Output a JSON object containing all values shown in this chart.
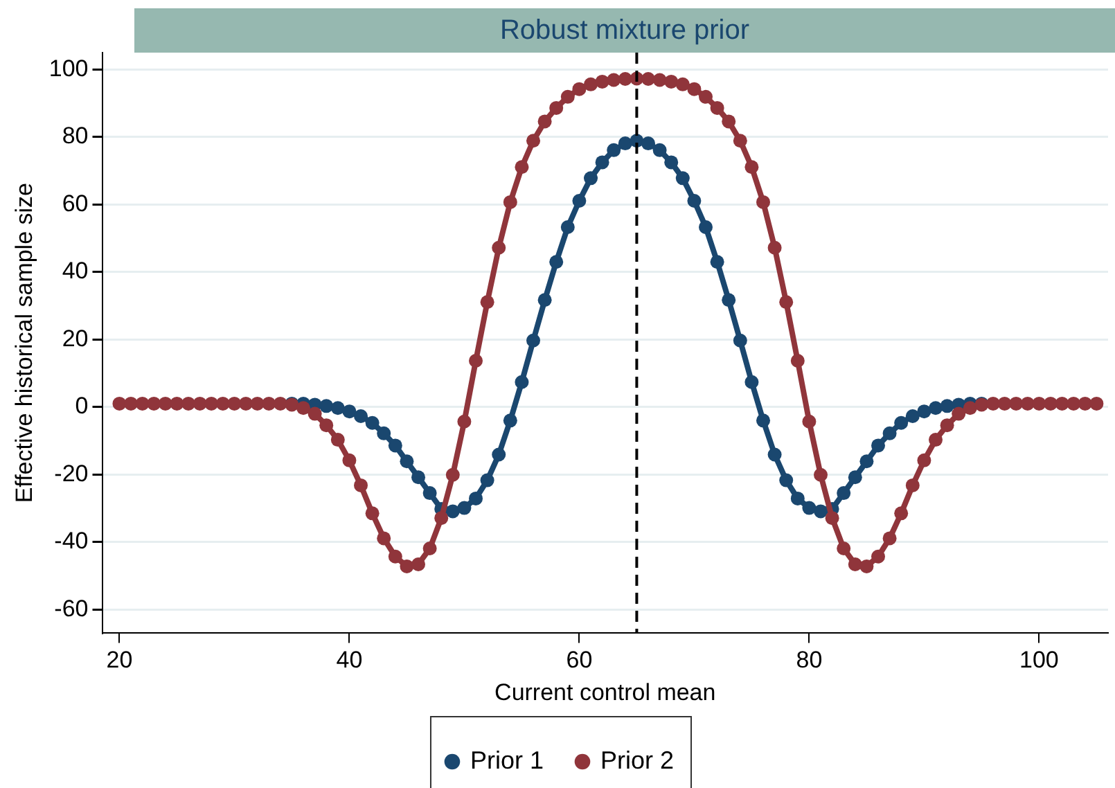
{
  "chart_data": {
    "type": "line",
    "title": "Robust mixture prior",
    "xlabel": "Current control mean",
    "ylabel": "Effective historical sample size",
    "x": [
      20,
      21,
      22,
      23,
      24,
      25,
      26,
      27,
      28,
      29,
      30,
      31,
      32,
      33,
      34,
      35,
      36,
      37,
      38,
      39,
      40,
      41,
      42,
      43,
      44,
      45,
      46,
      47,
      48,
      49,
      50,
      51,
      52,
      53,
      54,
      55,
      56,
      57,
      58,
      59,
      60,
      61,
      62,
      63,
      64,
      65,
      66,
      67,
      68,
      69,
      70,
      71,
      72,
      73,
      74,
      75,
      76,
      77,
      78,
      79,
      80,
      81,
      82,
      83,
      84,
      85,
      86,
      87,
      88,
      89,
      90,
      91,
      92,
      93,
      94,
      95,
      96,
      97,
      98,
      99,
      100,
      101,
      102,
      103,
      104,
      105
    ],
    "series": [
      {
        "name": "Prior 1",
        "color": "#1a476f",
        "values": [
          null,
          null,
          null,
          null,
          null,
          null,
          null,
          null,
          null,
          null,
          null,
          null,
          null,
          null,
          null,
          1,
          1,
          0.7,
          0.3,
          -0.3,
          -1.3,
          -2.7,
          -4.7,
          -7.8,
          -11.4,
          -16.1,
          -20.8,
          -25.5,
          -30.2,
          -30.9,
          -29.9,
          -27.1,
          -21.7,
          -14.1,
          -4,
          7.4,
          19.7,
          31.7,
          43,
          53.3,
          61.1,
          67.8,
          72.5,
          76.1,
          78.1,
          78.9,
          78.1,
          76.1,
          72.5,
          67.8,
          61.1,
          53.3,
          43,
          31.7,
          19.7,
          7.4,
          -4,
          -14.1,
          -21.7,
          -27.1,
          -29.9,
          -30.9,
          -30.2,
          -25.5,
          -20.8,
          -16.1,
          -11.4,
          -7.8,
          -4.7,
          -2.7,
          -1.3,
          -0.3,
          0.3,
          0.7,
          1,
          1,
          null,
          null,
          null,
          null,
          null,
          null,
          null,
          null,
          null,
          null
        ]
      },
      {
        "name": "Prior 2",
        "color": "#90353b",
        "values": [
          1,
          1,
          1,
          1,
          1,
          1,
          1,
          1,
          1,
          1,
          1,
          1,
          1,
          1,
          1,
          0.7,
          -0.3,
          -2,
          -5.4,
          -9.7,
          -15.8,
          -23.2,
          -31.5,
          -38.9,
          -44.3,
          -47.2,
          -46.6,
          -41.9,
          -32.9,
          -20.1,
          -4.3,
          13.7,
          31.1,
          47.2,
          60.7,
          71.1,
          78.9,
          84.6,
          88.6,
          91.9,
          94.2,
          95.6,
          96.4,
          96.9,
          97.2,
          97.3,
          97.2,
          96.9,
          96.4,
          95.6,
          94.2,
          91.9,
          88.6,
          84.6,
          78.9,
          71.1,
          60.7,
          47.2,
          31.1,
          13.7,
          -4.3,
          -20.1,
          -32.9,
          -41.9,
          -46.6,
          -47.2,
          -44.3,
          -38.9,
          -31.5,
          -23.2,
          -15.8,
          -9.7,
          -5.4,
          -2,
          -0.3,
          0.7,
          1,
          1,
          1,
          1,
          1,
          1,
          1,
          1,
          1,
          1
        ]
      }
    ],
    "xlim": [
      18.5,
      106
    ],
    "xticks": [
      20,
      40,
      60,
      80,
      100
    ],
    "ylim": [
      -67,
      105
    ],
    "yticks": [
      -60,
      -40,
      -20,
      0,
      20,
      40,
      60,
      80,
      100
    ],
    "ref_lines": [
      {
        "axis": "x",
        "value": 65,
        "color": "#000000",
        "line_style": "dashed"
      }
    ],
    "grid": "y",
    "legend": "bottom",
    "marker": "circle",
    "line_style": "solid"
  }
}
